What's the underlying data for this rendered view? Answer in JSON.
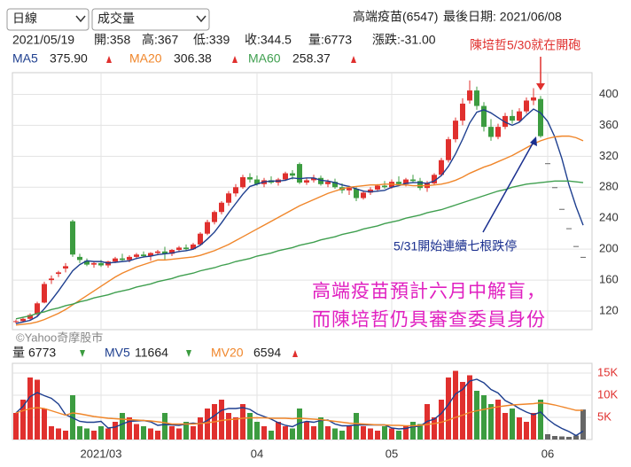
{
  "header": {
    "period": "日線",
    "indicator": "成交量",
    "stock": "高端疫苗(6547)",
    "last_date": "最後日期: 2021/06/08",
    "info": [
      "2021/05/19",
      "開:358",
      "高:367",
      "低:339",
      "收:344.5",
      "量:6773",
      "漲跌:-31.00"
    ]
  },
  "annotations": {
    "top": "陳培哲5/30就在開砲",
    "middle": "5/31開始連續七根跌停",
    "note_line1": "高端疫苗預計六月中解盲，",
    "note_line2": "而陳培哲仍具審查委員身份",
    "watermark": "©Yahoo奇摩股市"
  },
  "chart_data": [
    {
      "type": "candlestick",
      "up_color": "#e0302e",
      "down_color": "#3c9c40",
      "flat_color": "#666666",
      "ylim": [
        96,
        428
      ],
      "yticks": [
        120,
        160,
        200,
        240,
        280,
        320,
        360,
        400
      ],
      "grid": true,
      "open": [
        106,
        107,
        110,
        116,
        131,
        160,
        168,
        175,
        236,
        190,
        185,
        180,
        182,
        179,
        184,
        188,
        186,
        190,
        193,
        191,
        195,
        197,
        194,
        199,
        202,
        200,
        206,
        220,
        235,
        248,
        260,
        272,
        280,
        293,
        290,
        284,
        289,
        286,
        290,
        298,
        310,
        286,
        289,
        292,
        284,
        287,
        280,
        276,
        278,
        266,
        273,
        277,
        282,
        280,
        287,
        284,
        290,
        288,
        279,
        285,
        296,
        315,
        342,
        366,
        392,
        405,
        385,
        358,
        345,
        358,
        372,
        366,
        378,
        392,
        394,
        311,
        280,
        252,
        227,
        204,
        190
      ],
      "high": [
        109,
        112,
        117,
        132,
        158,
        166,
        172,
        182,
        238,
        194,
        188,
        184,
        186,
        185,
        190,
        194,
        192,
        195,
        197,
        196,
        199,
        203,
        200,
        204,
        206,
        208,
        222,
        238,
        250,
        262,
        275,
        284,
        296,
        298,
        295,
        292,
        294,
        292,
        300,
        302,
        312,
        292,
        296,
        295,
        290,
        291,
        285,
        282,
        280,
        276,
        280,
        284,
        288,
        290,
        294,
        292,
        296,
        292,
        288,
        298,
        318,
        345,
        370,
        395,
        418,
        410,
        390,
        368,
        362,
        376,
        380,
        382,
        396,
        408,
        398,
        311,
        280,
        252,
        227,
        204,
        190
      ],
      "low": [
        104,
        105,
        108,
        114,
        130,
        155,
        164,
        170,
        190,
        182,
        178,
        176,
        177,
        176,
        182,
        185,
        183,
        187,
        189,
        185,
        192,
        186,
        191,
        196,
        198,
        199,
        205,
        218,
        232,
        245,
        256,
        268,
        278,
        286,
        282,
        280,
        284,
        282,
        288,
        290,
        284,
        283,
        286,
        282,
        280,
        278,
        272,
        270,
        262,
        264,
        270,
        274,
        278,
        278,
        282,
        281,
        286,
        276,
        274,
        283,
        294,
        312,
        338,
        360,
        388,
        380,
        352,
        340,
        342,
        355,
        362,
        364,
        375,
        386,
        344,
        311,
        280,
        252,
        227,
        204,
        190
      ],
      "close": [
        107,
        110,
        115,
        130,
        155,
        162,
        170,
        178,
        193,
        186,
        180,
        182,
        179,
        184,
        188,
        186,
        190,
        193,
        191,
        195,
        197,
        194,
        199,
        202,
        200,
        206,
        220,
        235,
        248,
        260,
        272,
        280,
        293,
        290,
        284,
        289,
        286,
        290,
        298,
        295,
        286,
        289,
        292,
        284,
        287,
        280,
        276,
        279,
        266,
        273,
        277,
        282,
        280,
        287,
        284,
        290,
        288,
        279,
        285,
        296,
        315,
        342,
        366,
        388,
        405,
        385,
        358,
        345,
        358,
        372,
        366,
        378,
        392,
        396,
        346,
        311,
        280,
        252,
        227,
        204,
        190
      ],
      "series": [
        {
          "name": "MA5",
          "legend_value": "375.90",
          "color": "#1e3f8f",
          "values": [
            104,
            106,
            108,
            113,
            123,
            134,
            146,
            159,
            172,
            180,
            185,
            184,
            184,
            182,
            183,
            184,
            185,
            188,
            190,
            191,
            193,
            194,
            195,
            197,
            198,
            200,
            205,
            213,
            222,
            234,
            247,
            259,
            271,
            281,
            284,
            287,
            288,
            288,
            289,
            292,
            291,
            292,
            292,
            289,
            288,
            286,
            283,
            281,
            278,
            275,
            274,
            275,
            276,
            280,
            282,
            285,
            286,
            286,
            285,
            288,
            295,
            307,
            323,
            342,
            363,
            377,
            380,
            376,
            370,
            364,
            360,
            364,
            373,
            381,
            376,
            365,
            345,
            317,
            283,
            255,
            231
          ]
        },
        {
          "name": "MA20",
          "legend_value": "306.38",
          "color": "#f0862a",
          "values": [
            102,
            103,
            104,
            106,
            109,
            113,
            117,
            122,
            128,
            134,
            140,
            146,
            152,
            158,
            164,
            169,
            173,
            177,
            180,
            183,
            186,
            186,
            187,
            188,
            189,
            190,
            192,
            195,
            198,
            202,
            206,
            211,
            216,
            221,
            226,
            231,
            236,
            241,
            246,
            251,
            256,
            260,
            264,
            268,
            272,
            275,
            278,
            280,
            281,
            282,
            283,
            283,
            284,
            284,
            283,
            283,
            282,
            282,
            282,
            283,
            284,
            286,
            289,
            293,
            298,
            302,
            306,
            309,
            313,
            317,
            321,
            326,
            331,
            336,
            340,
            343,
            345,
            346,
            346,
            344,
            340
          ]
        },
        {
          "name": "MA60",
          "legend_value": "258.37",
          "color": "#3f9f4f",
          "values": [
            110,
            112,
            114,
            117,
            119,
            122,
            124,
            127,
            129,
            132,
            134,
            137,
            139,
            141,
            144,
            146,
            148,
            151,
            153,
            155,
            158,
            160,
            162,
            165,
            167,
            169,
            172,
            174,
            176,
            179,
            181,
            184,
            186,
            188,
            191,
            193,
            195,
            198,
            200,
            202,
            205,
            207,
            209,
            212,
            214,
            216,
            219,
            221,
            223,
            226,
            228,
            230,
            233,
            235,
            237,
            240,
            242,
            244,
            247,
            249,
            251,
            254,
            257,
            260,
            263,
            266,
            269,
            272,
            275,
            277,
            280,
            282,
            284,
            285,
            286,
            287,
            288,
            288,
            288,
            287,
            286
          ]
        }
      ]
    },
    {
      "type": "bar",
      "name": "量",
      "legend_value": "6773",
      "categories": [
        null,
        null,
        null,
        null,
        null,
        null,
        null,
        null,
        null,
        null,
        null,
        null,
        "2021/03",
        null,
        null,
        null,
        null,
        null,
        null,
        null,
        null,
        null,
        null,
        null,
        null,
        null,
        null,
        null,
        null,
        null,
        null,
        null,
        null,
        null,
        "04",
        null,
        null,
        null,
        null,
        null,
        null,
        null,
        null,
        null,
        null,
        null,
        null,
        null,
        null,
        null,
        null,
        null,
        null,
        "05",
        null,
        null,
        null,
        null,
        null,
        null,
        null,
        null,
        null,
        null,
        null,
        null,
        null,
        null,
        null,
        null,
        null,
        null,
        null,
        null,
        null,
        "06",
        null,
        null,
        null,
        null,
        null
      ],
      "ylim": [
        0,
        17200
      ],
      "yticks": [
        {
          "value": 5000,
          "label": "5K"
        },
        {
          "value": 10000,
          "label": "10K"
        },
        {
          "value": 15000,
          "label": "15K"
        }
      ],
      "values": [
        6000,
        9000,
        14000,
        13500,
        7000,
        3000,
        2500,
        2000,
        10000,
        3000,
        2500,
        2000,
        3000,
        2500,
        4000,
        6000,
        5000,
        3500,
        3000,
        2500,
        2000,
        6000,
        3000,
        2500,
        4000,
        3000,
        5000,
        7000,
        8000,
        9000,
        6000,
        5000,
        8000,
        6000,
        4000,
        3000,
        2000,
        4000,
        3000,
        2500,
        7000,
        4000,
        3000,
        5000,
        3000,
        2500,
        2000,
        3000,
        6000,
        3000,
        2500,
        2000,
        3000,
        2500,
        2000,
        3000,
        4000,
        3500,
        8000,
        5000,
        9000,
        14000,
        15500,
        13000,
        14500,
        11000,
        10000,
        8000,
        9000,
        6000,
        7000,
        5000,
        4000,
        6000,
        9000,
        1200,
        800,
        700,
        600,
        900,
        6773
      ],
      "series": [
        {
          "name": "MV5",
          "legend_value": "11664",
          "color": "#1e3f8f",
          "values": [
            6000,
            7500,
            9700,
            10600,
            9900,
            9300,
            8000,
            5600,
            4900,
            4100,
            3900,
            3900,
            4100,
            2600,
            2800,
            3500,
            4100,
            4200,
            4300,
            4000,
            3200,
            3400,
            3300,
            3200,
            3500,
            3700,
            3500,
            4300,
            5400,
            6600,
            7000,
            7000,
            7200,
            6800,
            5800,
            5200,
            4600,
            3800,
            3200,
            2900,
            3700,
            4100,
            3900,
            4300,
            4400,
            3500,
            3100,
            3100,
            3300,
            3300,
            3300,
            3300,
            3300,
            2600,
            2400,
            2500,
            2900,
            3000,
            4100,
            4600,
            5900,
            7900,
            10300,
            11300,
            13200,
            13600,
            12800,
            11300,
            10500,
            8800,
            8000,
            7000,
            6200,
            5600,
            6200,
            4600,
            3400,
            2500,
            1800,
            900,
            1900
          ]
        },
        {
          "name": "MV20",
          "legend_value": "6594",
          "color": "#f0862a",
          "values": [
            6000,
            6500,
            7000,
            7200,
            7000,
            6500,
            6000,
            5500,
            6000,
            5800,
            5500,
            5200,
            5000,
            4800,
            4700,
            4600,
            4500,
            4400,
            4300,
            4200,
            4000,
            3800,
            3500,
            3500,
            3500,
            3500,
            3600,
            3800,
            4000,
            4300,
            4500,
            4600,
            4800,
            4900,
            4900,
            4900,
            4800,
            4800,
            4800,
            4700,
            4800,
            4700,
            4600,
            4500,
            4300,
            4100,
            3900,
            3700,
            3600,
            3500,
            3400,
            3300,
            3300,
            3200,
            3200,
            3100,
            3100,
            3200,
            3400,
            3600,
            3900,
            4400,
            5000,
            5500,
            6100,
            6500,
            6800,
            7100,
            7400,
            7600,
            7800,
            7900,
            8000,
            8100,
            8300,
            8100,
            7800,
            7400,
            7000,
            6600,
            6594
          ]
        }
      ]
    }
  ]
}
